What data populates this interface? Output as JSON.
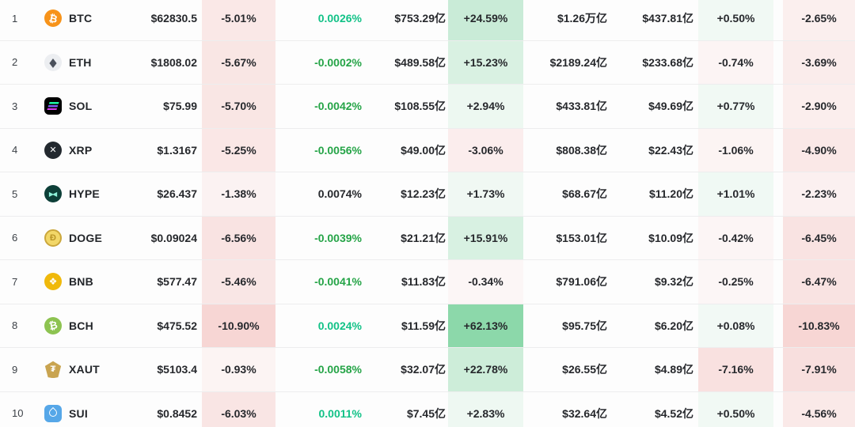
{
  "colors": {
    "background": "#fdfdfd",
    "separator": "#ededee",
    "neutral_text": "#26282c",
    "funding_positive_text": "#12c287",
    "funding_negative_text": "#25a447",
    "up_cell_base": "#2ab761",
    "down_cell_base": "#e34a40"
  },
  "table": {
    "columns": [
      "rank",
      "coin",
      "price",
      "price-change-percent",
      "funding-rate",
      "volume",
      "volume-change-percent",
      "market-cap",
      "open-interest",
      "open-interest-change-percent",
      "secondary-change-percent"
    ],
    "rows": [
      {
        "rank": "1",
        "icon": "btc",
        "symbol": "BTC",
        "price": "$62830.5",
        "change_a": {
          "text": "-5.01%",
          "value": -5.01
        },
        "funding": {
          "text": "0.0026%",
          "tone": "up"
        },
        "volume": "$753.29亿",
        "volume_change": {
          "text": "+24.59%",
          "value": 24.59
        },
        "market_cap": "$1.26万亿",
        "open_interest": "$437.81亿",
        "oi_change": {
          "text": "+0.50%",
          "value": 0.5
        },
        "change_b": {
          "text": "-2.65%",
          "value": -2.65
        }
      },
      {
        "rank": "2",
        "icon": "eth",
        "symbol": "ETH",
        "price": "$1808.02",
        "change_a": {
          "text": "-5.67%",
          "value": -5.67
        },
        "funding": {
          "text": "-0.0002%",
          "tone": "down"
        },
        "volume": "$489.58亿",
        "volume_change": {
          "text": "+15.23%",
          "value": 15.23
        },
        "market_cap": "$2189.24亿",
        "open_interest": "$233.68亿",
        "oi_change": {
          "text": "-0.74%",
          "value": -0.74
        },
        "change_b": {
          "text": "-3.69%",
          "value": -3.69
        }
      },
      {
        "rank": "3",
        "icon": "sol",
        "symbol": "SOL",
        "price": "$75.99",
        "change_a": {
          "text": "-5.70%",
          "value": -5.7
        },
        "funding": {
          "text": "-0.0042%",
          "tone": "down"
        },
        "volume": "$108.55亿",
        "volume_change": {
          "text": "+2.94%",
          "value": 2.94
        },
        "market_cap": "$433.81亿",
        "open_interest": "$49.69亿",
        "oi_change": {
          "text": "+0.77%",
          "value": 0.77
        },
        "change_b": {
          "text": "-2.90%",
          "value": -2.9
        }
      },
      {
        "rank": "4",
        "icon": "xrp",
        "symbol": "XRP",
        "price": "$1.3167",
        "change_a": {
          "text": "-5.25%",
          "value": -5.25
        },
        "funding": {
          "text": "-0.0056%",
          "tone": "down"
        },
        "volume": "$49.00亿",
        "volume_change": {
          "text": "-3.06%",
          "value": -3.06
        },
        "market_cap": "$808.38亿",
        "open_interest": "$22.43亿",
        "oi_change": {
          "text": "-1.06%",
          "value": -1.06
        },
        "change_b": {
          "text": "-4.90%",
          "value": -4.9
        }
      },
      {
        "rank": "5",
        "icon": "hype",
        "symbol": "HYPE",
        "price": "$26.437",
        "change_a": {
          "text": "-1.38%",
          "value": -1.38
        },
        "funding": {
          "text": "0.0074%",
          "tone": "neutral"
        },
        "volume": "$12.23亿",
        "volume_change": {
          "text": "+1.73%",
          "value": 1.73
        },
        "market_cap": "$68.67亿",
        "open_interest": "$11.20亿",
        "oi_change": {
          "text": "+1.01%",
          "value": 1.01
        },
        "change_b": {
          "text": "-2.23%",
          "value": -2.23
        }
      },
      {
        "rank": "6",
        "icon": "doge",
        "symbol": "DOGE",
        "price": "$0.09024",
        "change_a": {
          "text": "-6.56%",
          "value": -6.56
        },
        "funding": {
          "text": "-0.0039%",
          "tone": "down"
        },
        "volume": "$21.21亿",
        "volume_change": {
          "text": "+15.91%",
          "value": 15.91
        },
        "market_cap": "$153.01亿",
        "open_interest": "$10.09亿",
        "oi_change": {
          "text": "-0.42%",
          "value": -0.42
        },
        "change_b": {
          "text": "-6.45%",
          "value": -6.45
        }
      },
      {
        "rank": "7",
        "icon": "bnb",
        "symbol": "BNB",
        "price": "$577.47",
        "change_a": {
          "text": "-5.46%",
          "value": -5.46
        },
        "funding": {
          "text": "-0.0041%",
          "tone": "down"
        },
        "volume": "$11.83亿",
        "volume_change": {
          "text": "-0.34%",
          "value": -0.34
        },
        "market_cap": "$791.06亿",
        "open_interest": "$9.32亿",
        "oi_change": {
          "text": "-0.25%",
          "value": -0.25
        },
        "change_b": {
          "text": "-6.47%",
          "value": -6.47
        }
      },
      {
        "rank": "8",
        "icon": "bch",
        "symbol": "BCH",
        "price": "$475.52",
        "change_a": {
          "text": "-10.90%",
          "value": -10.9
        },
        "funding": {
          "text": "0.0024%",
          "tone": "up"
        },
        "volume": "$11.59亿",
        "volume_change": {
          "text": "+62.13%",
          "value": 62.13
        },
        "market_cap": "$95.75亿",
        "open_interest": "$6.20亿",
        "oi_change": {
          "text": "+0.08%",
          "value": 0.08
        },
        "change_b": {
          "text": "-10.83%",
          "value": -10.83
        }
      },
      {
        "rank": "9",
        "icon": "xaut",
        "symbol": "XAUT",
        "price": "$5103.4",
        "change_a": {
          "text": "-0.93%",
          "value": -0.93
        },
        "funding": {
          "text": "-0.0058%",
          "tone": "down"
        },
        "volume": "$32.07亿",
        "volume_change": {
          "text": "+22.78%",
          "value": 22.78
        },
        "market_cap": "$26.55亿",
        "open_interest": "$4.89亿",
        "oi_change": {
          "text": "-7.16%",
          "value": -7.16
        },
        "change_b": {
          "text": "-7.91%",
          "value": -7.91
        }
      },
      {
        "rank": "10",
        "icon": "sui",
        "symbol": "SUI",
        "price": "$0.8452",
        "change_a": {
          "text": "-6.03%",
          "value": -6.03
        },
        "funding": {
          "text": "0.0011%",
          "tone": "up"
        },
        "volume": "$7.45亿",
        "volume_change": {
          "text": "+2.83%",
          "value": 2.83
        },
        "market_cap": "$32.64亿",
        "open_interest": "$4.52亿",
        "oi_change": {
          "text": "+0.50%",
          "value": 0.5
        },
        "change_b": {
          "text": "-4.56%",
          "value": -4.56
        }
      }
    ]
  }
}
